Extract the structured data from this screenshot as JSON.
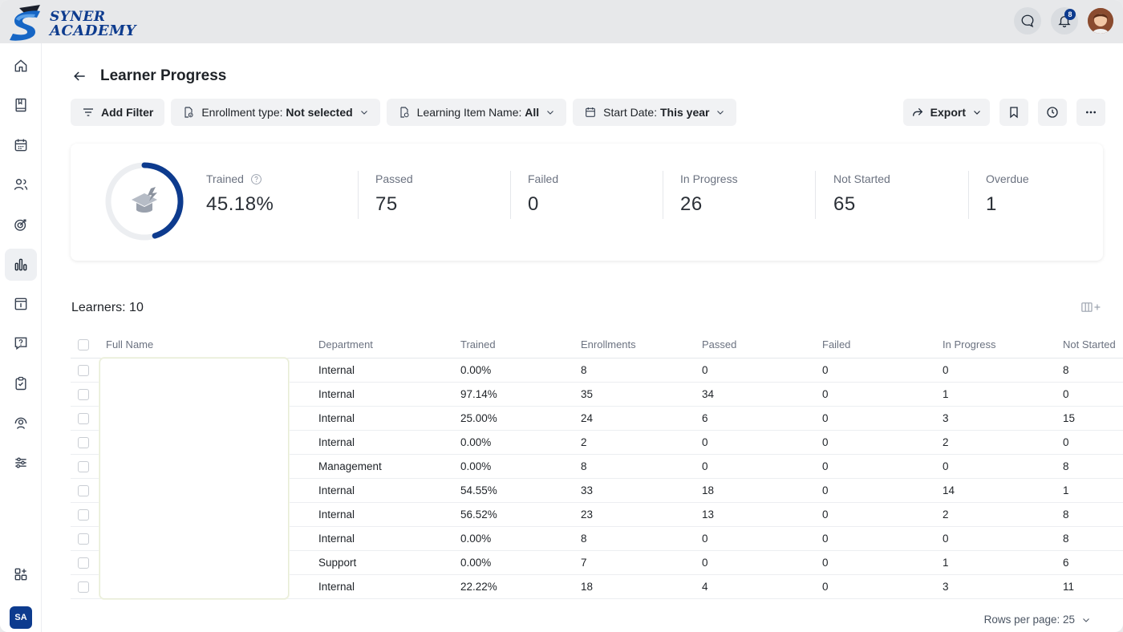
{
  "brand": {
    "line1": "SYNER",
    "line2": "ACADEMY"
  },
  "header": {
    "notification_count": "8"
  },
  "sidebar": {
    "items": [
      {
        "name": "home-icon"
      },
      {
        "name": "book-icon"
      },
      {
        "name": "calendar-icon"
      },
      {
        "name": "users-icon"
      },
      {
        "name": "target-icon"
      },
      {
        "name": "bar-chart-icon",
        "active": true
      },
      {
        "name": "info-panel-icon"
      },
      {
        "name": "question-icon"
      },
      {
        "name": "clipboard-check-icon"
      },
      {
        "name": "user-support-icon"
      },
      {
        "name": "sliders-icon"
      },
      {
        "name": "apps-add-icon"
      }
    ],
    "user_initials": "SA"
  },
  "page": {
    "title": "Learner Progress"
  },
  "filters": {
    "add_filter": "Add Filter",
    "enrollment_label": "Enrollment type: ",
    "enrollment_value": "Not selected",
    "item_label": "Learning Item Name: ",
    "item_value": "All",
    "date_label": "Start Date: ",
    "date_value": "This year"
  },
  "toolbar": {
    "export_label": "Export"
  },
  "stats": {
    "trained_pct": 45.18,
    "items": [
      {
        "label": "Trained",
        "value": "45.18%"
      },
      {
        "label": "Passed",
        "value": "75"
      },
      {
        "label": "Failed",
        "value": "0"
      },
      {
        "label": "In Progress",
        "value": "26"
      },
      {
        "label": "Not Started",
        "value": "65"
      },
      {
        "label": "Overdue",
        "value": "1"
      }
    ]
  },
  "table": {
    "count_label": "Learners: 10",
    "columns": [
      "Full Name",
      "Department",
      "Trained",
      "Enrollments",
      "Passed",
      "Failed",
      "In Progress",
      "Not Started"
    ],
    "rows": [
      [
        "Internal",
        "0.00%",
        "8",
        "0",
        "0",
        "0",
        "8"
      ],
      [
        "Internal",
        "97.14%",
        "35",
        "34",
        "0",
        "1",
        "0"
      ],
      [
        "Internal",
        "25.00%",
        "24",
        "6",
        "0",
        "3",
        "15"
      ],
      [
        "Internal",
        "0.00%",
        "2",
        "0",
        "0",
        "2",
        "0"
      ],
      [
        "Management",
        "0.00%",
        "8",
        "0",
        "0",
        "0",
        "8"
      ],
      [
        "Internal",
        "54.55%",
        "33",
        "18",
        "0",
        "14",
        "1"
      ],
      [
        "Internal",
        "56.52%",
        "23",
        "13",
        "0",
        "2",
        "8"
      ],
      [
        "Internal",
        "0.00%",
        "8",
        "0",
        "0",
        "0",
        "8"
      ],
      [
        "Support",
        "0.00%",
        "7",
        "0",
        "0",
        "1",
        "6"
      ],
      [
        "Internal",
        "22.22%",
        "18",
        "4",
        "0",
        "3",
        "11"
      ]
    ],
    "rows_per_page_label": "Rows per page: 25"
  }
}
